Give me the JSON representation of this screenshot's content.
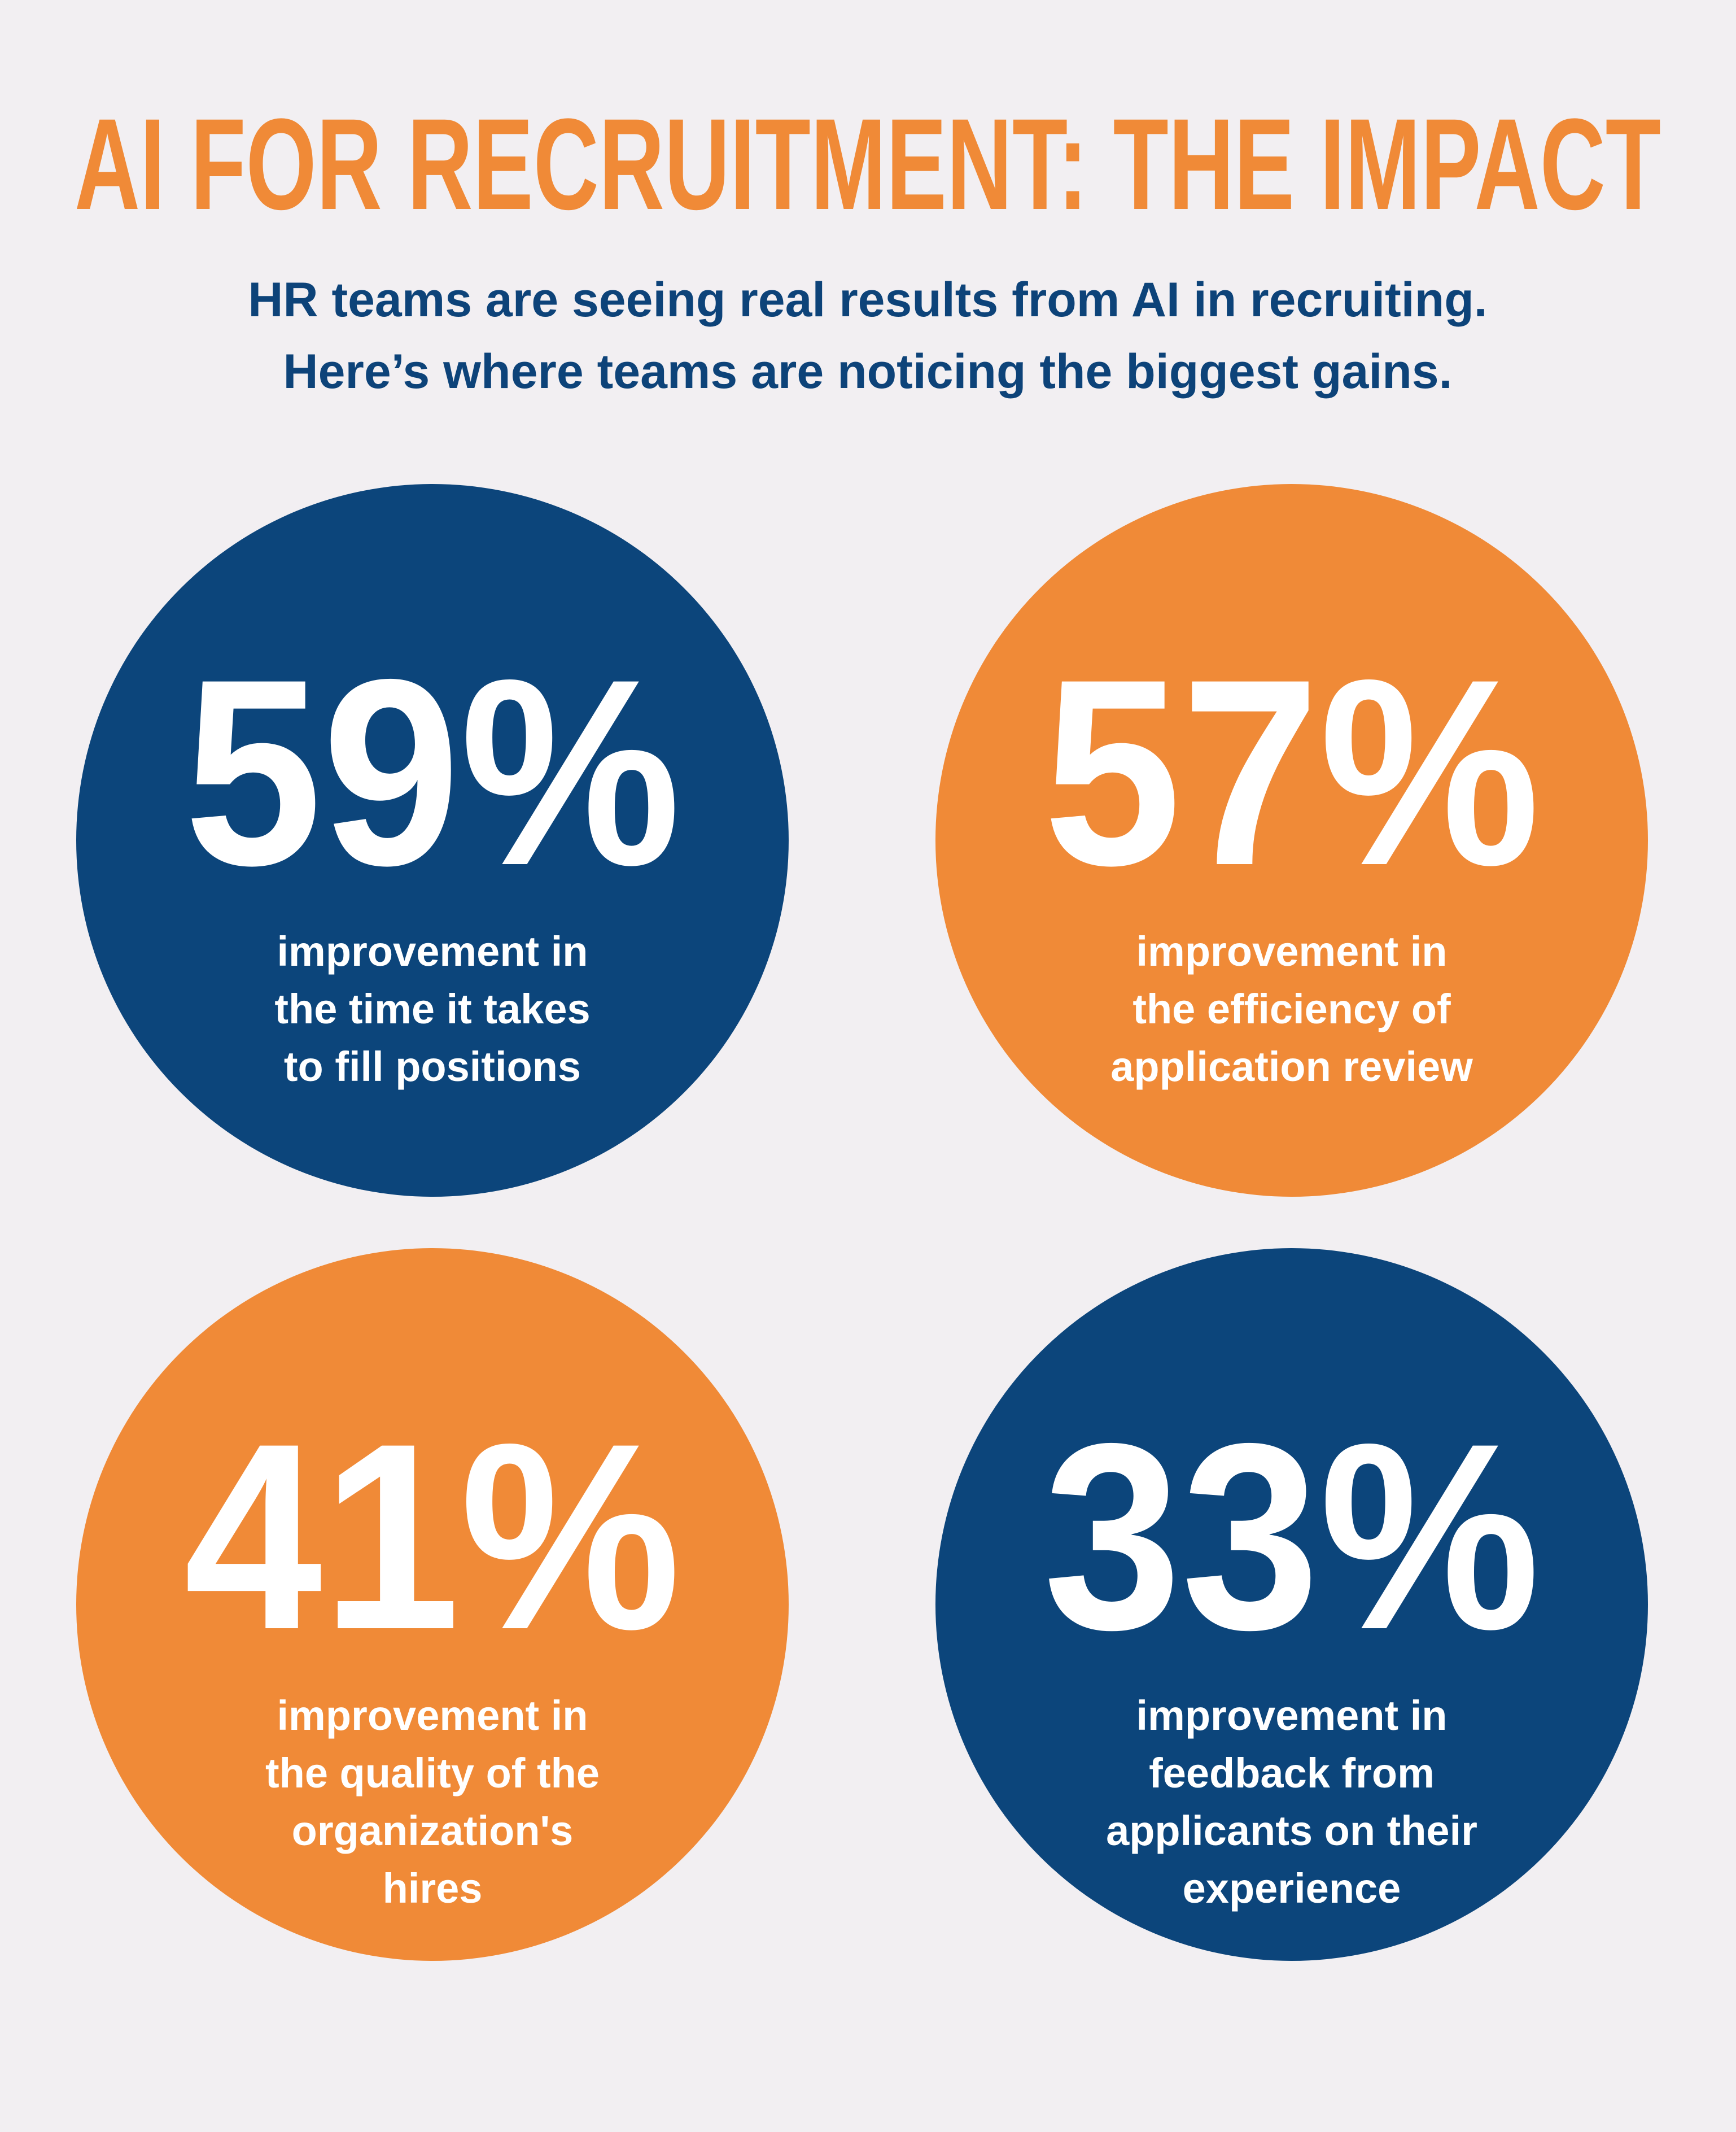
{
  "header": {
    "title": "AI FOR RECRUITMENT: THE IMPACT",
    "subtitle": [
      "HR teams are seeing real results from AI in recruiting.",
      "Here’s where teams are noticing the biggest gains."
    ]
  },
  "stats": [
    {
      "value": "59%",
      "description": [
        "improvement in",
        "the time it takes",
        "to fill positions"
      ],
      "color": "#0c457b"
    },
    {
      "value": "57%",
      "description": [
        "improvement in",
        "the efficiency of",
        "application review"
      ],
      "color": "#f08a37"
    },
    {
      "value": "41%",
      "description": [
        "improvement in",
        "the quality of the",
        "organization's",
        "hires"
      ],
      "color": "#f08a37"
    },
    {
      "value": "33%",
      "description": [
        "improvement in",
        "feedback from",
        "applicants on their",
        "experience"
      ],
      "color": "#0c457b"
    }
  ]
}
